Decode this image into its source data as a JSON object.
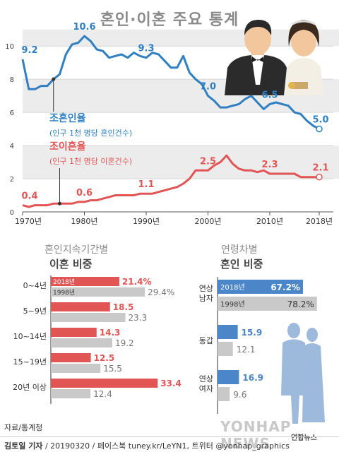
{
  "title": "혼인·이혼 주요 통계",
  "colors": {
    "blue": "#2f7fc1",
    "red": "#e25555",
    "gray": "#c9c9c9",
    "band": "#ececec"
  },
  "chart_data": [
    {
      "type": "line",
      "x_ticks": [
        "1970년",
        "1980년",
        "1990년",
        "2000년",
        "2010년",
        "2018년"
      ],
      "x_tick_values": [
        1970,
        1980,
        1990,
        2000,
        2010,
        2018
      ],
      "y_ticks": [
        "0",
        "2",
        "4",
        "6",
        "8",
        "10"
      ],
      "ylim": [
        0,
        11.5
      ],
      "series": [
        {
          "name": "조혼인율",
          "sub": "(인구 1천 명당 혼인건수)",
          "color": "#2f7fc1",
          "x": [
            1970,
            1971,
            1972,
            1973,
            1974,
            1975,
            1976,
            1977,
            1978,
            1979,
            1980,
            1981,
            1982,
            1983,
            1984,
            1985,
            1986,
            1987,
            1988,
            1989,
            1990,
            1991,
            1992,
            1993,
            1994,
            1995,
            1996,
            1997,
            1998,
            1999,
            2000,
            2001,
            2002,
            2003,
            2004,
            2005,
            2006,
            2007,
            2008,
            2009,
            2010,
            2011,
            2012,
            2013,
            2014,
            2015,
            2016,
            2017,
            2018
          ],
          "y": [
            9.2,
            7.4,
            7.4,
            7.6,
            7.6,
            8.0,
            8.3,
            9.5,
            10.1,
            10.2,
            10.6,
            10.3,
            9.8,
            9.7,
            9.3,
            9.4,
            9.5,
            9.3,
            9.6,
            9.4,
            9.3,
            9.6,
            9.5,
            9.1,
            8.7,
            8.7,
            9.4,
            8.4,
            8.0,
            7.7,
            7.0,
            6.7,
            6.3,
            6.3,
            6.4,
            6.5,
            6.8,
            7.0,
            6.6,
            6.2,
            6.5,
            6.6,
            6.5,
            6.4,
            6.0,
            5.9,
            5.5,
            5.2,
            5.0
          ]
        },
        {
          "name": "조이혼율",
          "sub": "(인구 1천 명당 이혼건수)",
          "color": "#e25555",
          "x": [
            1970,
            1971,
            1972,
            1973,
            1974,
            1975,
            1976,
            1977,
            1978,
            1979,
            1980,
            1981,
            1982,
            1983,
            1984,
            1985,
            1986,
            1987,
            1988,
            1989,
            1990,
            1991,
            1992,
            1993,
            1994,
            1995,
            1996,
            1997,
            1998,
            1999,
            2000,
            2001,
            2002,
            2003,
            2004,
            2005,
            2006,
            2007,
            2008,
            2009,
            2010,
            2011,
            2012,
            2013,
            2014,
            2015,
            2016,
            2017,
            2018
          ],
          "y": [
            0.4,
            0.3,
            0.4,
            0.4,
            0.4,
            0.5,
            0.5,
            0.5,
            0.5,
            0.6,
            0.6,
            0.7,
            0.7,
            0.8,
            0.9,
            1.0,
            1.0,
            1.0,
            1.0,
            1.1,
            1.1,
            1.1,
            1.2,
            1.3,
            1.4,
            1.5,
            1.7,
            2.0,
            2.5,
            2.5,
            2.5,
            2.8,
            3.0,
            3.4,
            2.9,
            2.6,
            2.5,
            2.5,
            2.4,
            2.5,
            2.3,
            2.3,
            2.3,
            2.3,
            2.3,
            2.1,
            2.1,
            2.1,
            2.1
          ]
        }
      ],
      "annotations": [
        {
          "series": 0,
          "x": 1970,
          "label": "9.2"
        },
        {
          "series": 0,
          "x": 1980,
          "label": "10.6"
        },
        {
          "series": 0,
          "x": 1990,
          "label": "9.3"
        },
        {
          "series": 0,
          "x": 2000,
          "label": "7.0"
        },
        {
          "series": 0,
          "x": 2010,
          "label": "6.5"
        },
        {
          "series": 0,
          "x": 2018,
          "label": "5.0"
        },
        {
          "series": 1,
          "x": 1970,
          "label": "0.4"
        },
        {
          "series": 1,
          "x": 1980,
          "label": "0.6"
        },
        {
          "series": 1,
          "x": 1990,
          "label": "1.1"
        },
        {
          "series": 1,
          "x": 2000,
          "label": "2.5"
        },
        {
          "series": 1,
          "x": 2010,
          "label": "2.3"
        },
        {
          "series": 1,
          "x": 2018,
          "label": "2.1"
        }
      ]
    },
    {
      "type": "bar",
      "title_small": "혼인지속기간별",
      "title": "이혼 비중",
      "categories": [
        "0~4년",
        "5~9년",
        "10~14년",
        "15~19년",
        "20년 이상"
      ],
      "series": [
        {
          "name": "2018년",
          "color": "#e25555",
          "values": [
            21.4,
            18.5,
            14.3,
            12.5,
            33.4
          ],
          "labels": [
            "21.4%",
            "18.5",
            "14.3",
            "12.5",
            "33.4"
          ]
        },
        {
          "name": "1998년",
          "color": "#c9c9c9",
          "values": [
            29.4,
            23.3,
            19.2,
            15.5,
            12.4
          ],
          "labels": [
            "29.4%",
            "23.3",
            "19.2",
            "15.5",
            "12.4"
          ]
        }
      ],
      "xlim": [
        0,
        34
      ]
    },
    {
      "type": "bar",
      "title_small": "연령차별",
      "title": "혼인 비중",
      "categories": [
        [
          "연상",
          "남자"
        ],
        [
          "동갑"
        ],
        [
          "연상",
          "여자"
        ]
      ],
      "series": [
        {
          "name": "2018년",
          "color": "#4a86c8",
          "values": [
            67.2,
            15.9,
            16.9
          ],
          "labels": [
            "67.2%",
            "15.9",
            "16.9"
          ]
        },
        {
          "name": "1998년",
          "color": "#c9c9c9",
          "values": [
            78.2,
            12.1,
            9.6
          ],
          "labels": [
            "78.2%",
            "12.1",
            "9.6"
          ]
        }
      ],
      "xlim": [
        0,
        80
      ]
    }
  ],
  "source": "자료/통계청",
  "credit": {
    "author": "김토일 기자",
    "rest": "/ 20190320 / 페이스북 tuney.kr/LeYN1, 트위터 @yonhap_graphics"
  },
  "watermark": "YONHAP NEWS",
  "logo": "연합뉴스"
}
